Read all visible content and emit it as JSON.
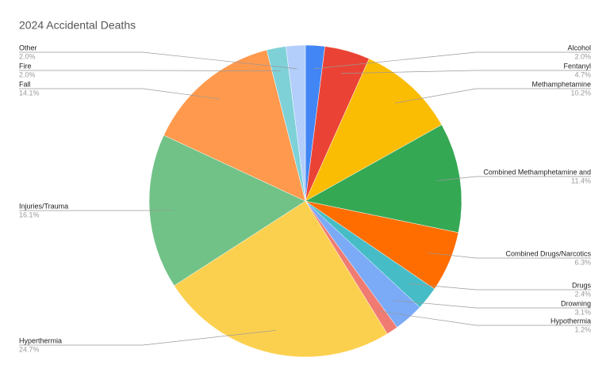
{
  "chart_data": {
    "type": "pie",
    "title": "2024 Accidental Deaths",
    "categories": [
      "Alcohol",
      "Fentanyl",
      "Methamphetamine",
      "Combined Methamphetamine and",
      "Combined Drugs/Narcotics",
      "Drugs",
      "Drowning",
      "Hypothermia",
      "Hyperthermia",
      "Injuries/Trauma",
      "Fall",
      "Fire",
      "Other"
    ],
    "values": [
      2.0,
      4.7,
      10.2,
      11.4,
      6.3,
      2.4,
      3.1,
      1.2,
      24.7,
      16.1,
      14.1,
      2.0,
      2.0
    ],
    "value_labels": [
      "2.0%",
      "4.7%",
      "10.2%",
      "11.4%",
      "6.3%",
      "2.4%",
      "3.1%",
      "1.2%",
      "24.7%",
      "16.1%",
      "14.1%",
      "2.0%",
      "2.0%"
    ],
    "colors": [
      "#4285f4",
      "#ea4335",
      "#fbbc04",
      "#34a853",
      "#ff6d01",
      "#46bdc6",
      "#7baaf7",
      "#f07b72",
      "#fcd04f",
      "#71c287",
      "#ff994d",
      "#7ed1d7",
      "#b3cefb"
    ]
  }
}
